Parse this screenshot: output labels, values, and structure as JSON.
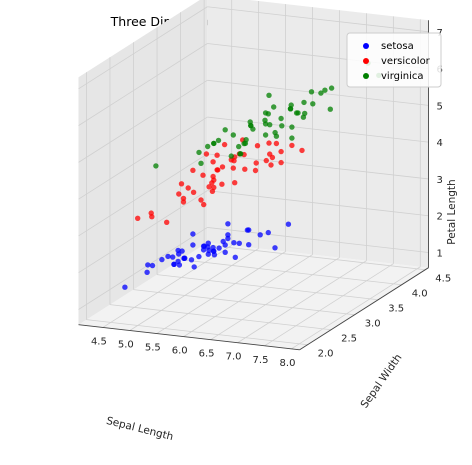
{
  "chart_data": {
    "type": "scatter",
    "title": "Three Dimensional of The Raw Data",
    "xlabel": "Sepal Length",
    "ylabel": "Sepal Width",
    "zlabel": "Petal Length",
    "xlim": [
      4.3,
      7.9
    ],
    "ylim": [
      2.0,
      4.4
    ],
    "zlim": [
      1.0,
      6.9
    ],
    "xticks": [
      "4.5",
      "5.0",
      "5.5",
      "6.0",
      "6.5",
      "7.0",
      "7.5",
      "8.0"
    ],
    "yticks": [
      "2.0",
      "2.5",
      "3.0",
      "3.5",
      "4.0",
      "4.5"
    ],
    "zticks": [
      "1",
      "2",
      "3",
      "4",
      "5",
      "6",
      "7"
    ],
    "grid": true,
    "legend_position": "top-right",
    "series": [
      {
        "name": "setosa",
        "color": "#0000ff",
        "points": [
          [
            5.1,
            3.5,
            1.4
          ],
          [
            4.9,
            3.0,
            1.4
          ],
          [
            4.7,
            3.2,
            1.3
          ],
          [
            4.6,
            3.1,
            1.5
          ],
          [
            5.0,
            3.6,
            1.4
          ],
          [
            5.4,
            3.9,
            1.7
          ],
          [
            4.6,
            3.4,
            1.4
          ],
          [
            5.0,
            3.4,
            1.5
          ],
          [
            4.4,
            2.9,
            1.4
          ],
          [
            4.9,
            3.1,
            1.5
          ],
          [
            5.4,
            3.7,
            1.5
          ],
          [
            4.8,
            3.4,
            1.6
          ],
          [
            4.8,
            3.0,
            1.4
          ],
          [
            4.3,
            3.0,
            1.1
          ],
          [
            5.8,
            4.0,
            1.2
          ],
          [
            5.7,
            4.4,
            1.5
          ],
          [
            5.4,
            3.9,
            1.3
          ],
          [
            5.1,
            3.5,
            1.4
          ],
          [
            5.7,
            3.8,
            1.7
          ],
          [
            5.1,
            3.8,
            1.5
          ],
          [
            5.4,
            3.4,
            1.7
          ],
          [
            5.1,
            3.7,
            1.5
          ],
          [
            4.6,
            3.6,
            1.0
          ],
          [
            5.1,
            3.3,
            1.7
          ],
          [
            4.8,
            3.4,
            1.9
          ],
          [
            5.0,
            3.0,
            1.6
          ],
          [
            5.0,
            3.4,
            1.6
          ],
          [
            5.2,
            3.5,
            1.5
          ],
          [
            5.2,
            3.4,
            1.4
          ],
          [
            4.7,
            3.2,
            1.6
          ],
          [
            4.8,
            3.1,
            1.6
          ],
          [
            5.4,
            3.4,
            1.5
          ],
          [
            5.2,
            4.1,
            1.5
          ],
          [
            5.5,
            4.2,
            1.4
          ],
          [
            4.9,
            3.1,
            1.5
          ],
          [
            5.0,
            3.2,
            1.2
          ],
          [
            5.5,
            3.5,
            1.3
          ],
          [
            4.9,
            3.6,
            1.4
          ],
          [
            4.4,
            3.0,
            1.3
          ],
          [
            5.1,
            3.4,
            1.5
          ],
          [
            5.0,
            3.5,
            1.3
          ],
          [
            4.5,
            2.3,
            1.3
          ],
          [
            4.4,
            3.2,
            1.3
          ],
          [
            5.0,
            3.5,
            1.6
          ],
          [
            5.1,
            3.8,
            1.9
          ],
          [
            4.8,
            3.0,
            1.4
          ],
          [
            5.1,
            3.8,
            1.6
          ],
          [
            4.6,
            3.2,
            1.4
          ],
          [
            5.3,
            3.7,
            1.5
          ],
          [
            5.0,
            3.3,
            1.4
          ]
        ]
      },
      {
        "name": "versicolor",
        "color": "#ff0000",
        "points": [
          [
            7.0,
            3.2,
            4.7
          ],
          [
            6.4,
            3.2,
            4.5
          ],
          [
            6.9,
            3.1,
            4.9
          ],
          [
            5.5,
            2.3,
            4.0
          ],
          [
            6.5,
            2.8,
            4.6
          ],
          [
            5.7,
            2.8,
            4.5
          ],
          [
            6.3,
            3.3,
            4.7
          ],
          [
            4.9,
            2.4,
            3.3
          ],
          [
            6.6,
            2.9,
            4.6
          ],
          [
            5.2,
            2.7,
            3.9
          ],
          [
            5.0,
            2.0,
            3.5
          ],
          [
            5.9,
            3.0,
            4.2
          ],
          [
            6.0,
            2.2,
            4.0
          ],
          [
            6.1,
            2.9,
            4.7
          ],
          [
            5.6,
            2.9,
            3.6
          ],
          [
            6.7,
            3.1,
            4.4
          ],
          [
            5.6,
            3.0,
            4.5
          ],
          [
            5.8,
            2.7,
            4.1
          ],
          [
            6.2,
            2.2,
            4.5
          ],
          [
            5.6,
            2.5,
            3.9
          ],
          [
            5.9,
            3.2,
            4.8
          ],
          [
            6.1,
            2.8,
            4.0
          ],
          [
            6.3,
            2.5,
            4.9
          ],
          [
            6.1,
            2.8,
            4.7
          ],
          [
            6.4,
            2.9,
            4.3
          ],
          [
            6.6,
            3.0,
            4.4
          ],
          [
            6.8,
            2.8,
            4.8
          ],
          [
            6.7,
            3.0,
            5.0
          ],
          [
            6.0,
            2.9,
            4.5
          ],
          [
            5.7,
            2.6,
            3.5
          ],
          [
            5.5,
            2.4,
            3.8
          ],
          [
            5.5,
            2.4,
            3.7
          ],
          [
            5.8,
            2.7,
            3.9
          ],
          [
            6.0,
            2.7,
            5.1
          ],
          [
            5.4,
            3.0,
            4.5
          ],
          [
            6.0,
            3.4,
            4.5
          ],
          [
            6.7,
            3.1,
            4.7
          ],
          [
            6.3,
            2.3,
            4.4
          ],
          [
            5.6,
            3.0,
            4.1
          ],
          [
            5.5,
            2.5,
            4.0
          ],
          [
            5.5,
            2.6,
            4.4
          ],
          [
            6.1,
            3.0,
            4.6
          ],
          [
            5.8,
            2.6,
            4.0
          ],
          [
            5.0,
            2.3,
            3.3
          ],
          [
            5.6,
            2.7,
            4.2
          ],
          [
            5.7,
            3.0,
            4.2
          ],
          [
            5.7,
            2.9,
            4.2
          ],
          [
            6.2,
            2.9,
            4.3
          ],
          [
            5.1,
            2.5,
            3.0
          ],
          [
            5.7,
            2.8,
            4.1
          ]
        ]
      },
      {
        "name": "virginica",
        "color": "#008000",
        "points": [
          [
            6.3,
            3.3,
            6.0
          ],
          [
            5.8,
            2.7,
            5.1
          ],
          [
            7.1,
            3.0,
            5.9
          ],
          [
            6.3,
            2.9,
            5.6
          ],
          [
            6.5,
            3.0,
            5.8
          ],
          [
            7.6,
            3.0,
            6.6
          ],
          [
            4.9,
            2.5,
            4.5
          ],
          [
            7.3,
            2.9,
            6.3
          ],
          [
            6.7,
            2.5,
            5.8
          ],
          [
            7.2,
            3.6,
            6.1
          ],
          [
            6.5,
            3.2,
            5.1
          ],
          [
            6.4,
            2.7,
            5.3
          ],
          [
            6.8,
            3.0,
            5.5
          ],
          [
            5.7,
            2.5,
            5.0
          ],
          [
            5.8,
            2.8,
            5.1
          ],
          [
            6.4,
            3.2,
            5.3
          ],
          [
            6.5,
            3.0,
            5.5
          ],
          [
            7.7,
            3.8,
            6.7
          ],
          [
            7.7,
            2.6,
            6.9
          ],
          [
            6.0,
            2.2,
            5.0
          ],
          [
            6.9,
            3.2,
            5.7
          ],
          [
            5.6,
            2.8,
            4.9
          ],
          [
            7.7,
            2.8,
            6.7
          ],
          [
            6.3,
            2.7,
            4.9
          ],
          [
            6.7,
            3.3,
            5.7
          ],
          [
            7.2,
            3.2,
            6.0
          ],
          [
            6.2,
            2.8,
            4.8
          ],
          [
            6.1,
            3.0,
            4.9
          ],
          [
            6.4,
            2.8,
            5.6
          ],
          [
            7.2,
            3.0,
            5.8
          ],
          [
            7.4,
            2.8,
            6.1
          ],
          [
            7.9,
            3.8,
            6.4
          ],
          [
            6.4,
            2.8,
            5.6
          ],
          [
            6.3,
            2.8,
            5.1
          ],
          [
            6.1,
            2.6,
            5.6
          ],
          [
            7.7,
            3.0,
            6.1
          ],
          [
            6.3,
            3.4,
            5.6
          ],
          [
            6.4,
            3.1,
            5.5
          ],
          [
            6.0,
            3.0,
            4.8
          ],
          [
            6.9,
            3.1,
            5.4
          ],
          [
            6.7,
            3.1,
            5.6
          ],
          [
            6.9,
            3.1,
            5.1
          ],
          [
            5.8,
            2.7,
            5.1
          ],
          [
            6.8,
            3.2,
            5.9
          ],
          [
            6.7,
            3.3,
            5.7
          ],
          [
            6.7,
            3.0,
            5.2
          ],
          [
            6.3,
            2.5,
            5.0
          ],
          [
            6.5,
            3.0,
            5.2
          ],
          [
            6.2,
            3.4,
            5.4
          ],
          [
            5.9,
            3.0,
            5.1
          ]
        ]
      }
    ]
  }
}
